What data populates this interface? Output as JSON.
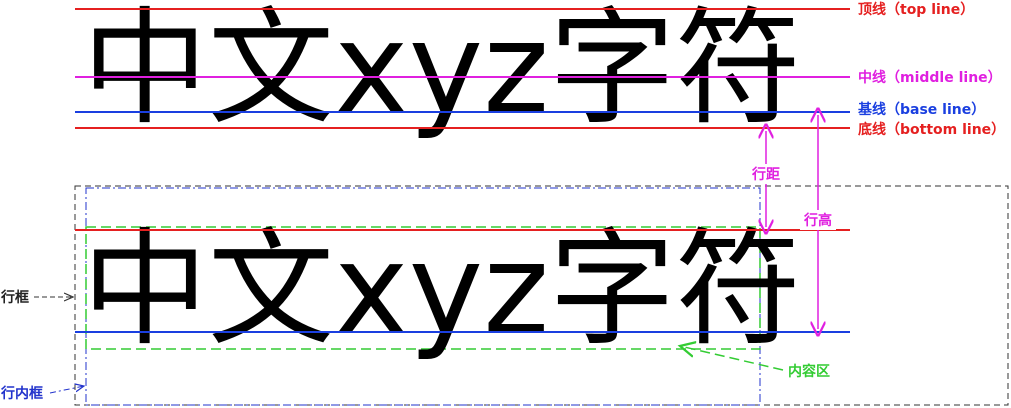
{
  "sample_text": "中文xyz字符",
  "lines": {
    "top": "顶线（top line）",
    "middle": "中线（middle line）",
    "base": "基线（base line）",
    "bottom": "底线（bottom line）"
  },
  "annotations": {
    "line_gap": "行距",
    "line_height": "行高",
    "line_box": "行框",
    "inline_box": "行内框",
    "content_area": "内容区"
  }
}
